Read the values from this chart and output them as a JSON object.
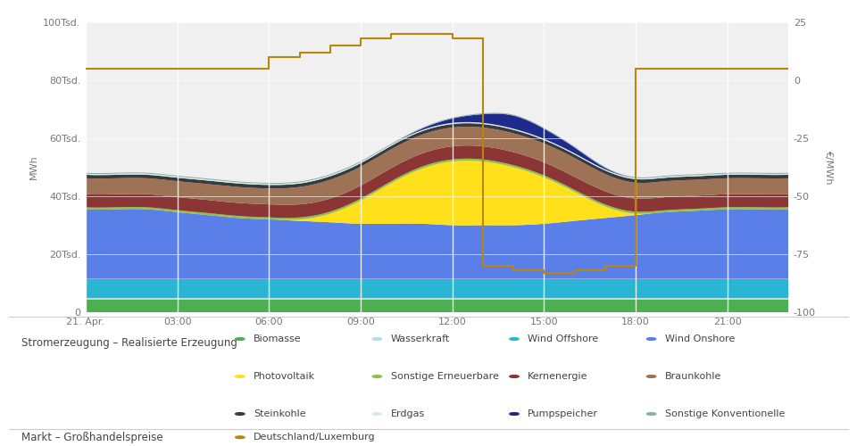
{
  "hours": [
    0,
    1,
    2,
    3,
    4,
    5,
    6,
    7,
    8,
    9,
    10,
    11,
    12,
    13,
    14,
    15,
    16,
    17,
    18,
    19,
    20,
    21,
    22,
    23
  ],
  "biomasse": [
    4200,
    4200,
    4200,
    4200,
    4200,
    4200,
    4200,
    4200,
    4200,
    4200,
    4200,
    4200,
    4200,
    4200,
    4200,
    4200,
    4200,
    4200,
    4200,
    4200,
    4200,
    4200,
    4200,
    4200
  ],
  "wasserkraft": [
    800,
    800,
    800,
    800,
    800,
    800,
    800,
    800,
    800,
    800,
    800,
    800,
    800,
    800,
    800,
    800,
    800,
    800,
    800,
    800,
    800,
    800,
    800,
    800
  ],
  "wind_offshore": [
    6500,
    6500,
    6500,
    6500,
    6500,
    6500,
    6500,
    6500,
    6500,
    6500,
    6500,
    6500,
    6500,
    6500,
    6500,
    6500,
    6500,
    6500,
    6500,
    6500,
    6500,
    6500,
    6500,
    6500
  ],
  "wind_onshore": [
    24000,
    24000,
    24000,
    23000,
    22000,
    21000,
    20500,
    20000,
    19500,
    19000,
    19000,
    19000,
    18500,
    18500,
    18500,
    19000,
    20000,
    21000,
    22000,
    23000,
    23500,
    24000,
    24000,
    24000
  ],
  "photovoltaik": [
    0,
    0,
    0,
    0,
    0,
    0,
    0,
    500,
    3000,
    8000,
    14000,
    19000,
    22000,
    22000,
    20000,
    16000,
    10000,
    4000,
    500,
    0,
    0,
    0,
    0,
    0
  ],
  "sonstige_ern": [
    700,
    700,
    700,
    700,
    700,
    700,
    700,
    700,
    700,
    700,
    700,
    700,
    700,
    700,
    700,
    700,
    700,
    700,
    700,
    700,
    700,
    700,
    700,
    700
  ],
  "kernenergie": [
    4500,
    4500,
    4500,
    4500,
    4500,
    4500,
    4500,
    4500,
    4500,
    4500,
    4500,
    4500,
    4500,
    4500,
    4500,
    4500,
    4500,
    4500,
    4500,
    4500,
    4500,
    4500,
    4500,
    4500
  ],
  "braunkohle": [
    5500,
    5500,
    5500,
    5500,
    5500,
    5500,
    5500,
    6000,
    6500,
    6500,
    6500,
    6500,
    6500,
    6500,
    6500,
    6500,
    6500,
    6000,
    5500,
    5500,
    5500,
    5500,
    5500,
    5500
  ],
  "steinkohle": [
    1200,
    1200,
    1200,
    1200,
    1200,
    1200,
    1200,
    1200,
    1200,
    1200,
    1200,
    1200,
    1200,
    1200,
    1200,
    1200,
    1200,
    1200,
    1200,
    1200,
    1200,
    1200,
    1200,
    1200
  ],
  "erdgas": [
    400,
    400,
    400,
    400,
    400,
    400,
    400,
    400,
    400,
    400,
    400,
    400,
    400,
    400,
    400,
    400,
    400,
    400,
    400,
    400,
    400,
    400,
    400,
    400
  ],
  "pumpspeicher": [
    0,
    0,
    0,
    0,
    0,
    0,
    0,
    0,
    0,
    0,
    0,
    500,
    1500,
    3000,
    4500,
    3500,
    2000,
    500,
    0,
    0,
    0,
    0,
    0,
    0
  ],
  "sonstige_konv": [
    300,
    300,
    300,
    300,
    300,
    300,
    300,
    300,
    300,
    300,
    300,
    300,
    300,
    300,
    300,
    300,
    300,
    300,
    300,
    300,
    300,
    300,
    300,
    300
  ],
  "price": [
    5,
    5,
    5,
    5,
    5,
    5,
    10,
    12,
    15,
    18,
    20,
    20,
    18,
    -80,
    -82,
    -83,
    -82,
    -80,
    5,
    5,
    5,
    5,
    5,
    5
  ],
  "colors": {
    "biomasse": "#4caf50",
    "wasserkraft": "#b8dde8",
    "wind_offshore": "#29b6d4",
    "wind_onshore": "#5b7fe8",
    "photovoltaik": "#ffe01a",
    "sonstige_ern": "#8bc34a",
    "kernenergie": "#8b3535",
    "braunkohle": "#9e7355",
    "steinkohle": "#3a3a3a",
    "erdgas": "#d4ecee",
    "pumpspeicher": "#1e2b8a",
    "sonstige_konv": "#8aacac"
  },
  "price_color": "#b8860b",
  "ylim_left": [
    0,
    100000
  ],
  "ylim_right": [
    -100,
    25
  ],
  "yticks_left": [
    0,
    20000,
    40000,
    60000,
    80000,
    100000
  ],
  "ytick_labels_left": [
    "0",
    "20Tsd.",
    "40Tsd.",
    "60Tsd.",
    "80Tsd.",
    "100Tsd."
  ],
  "yticks_right": [
    -100,
    -75,
    -50,
    -25,
    0,
    25
  ],
  "xlabel_ticks": [
    0,
    3,
    6,
    9,
    12,
    15,
    18,
    21
  ],
  "xlabel_labels": [
    "21. Apr.",
    "03:00",
    "06:00",
    "09:00",
    "12:00",
    "15:00",
    "18:00",
    "21:00"
  ],
  "ylabel_left": "MWh",
  "ylabel_right": "€/MWh",
  "bg_color": "#f0f0f0",
  "legend_items": [
    {
      "label": "Biomasse",
      "color": "#4caf50"
    },
    {
      "label": "Wasserkraft",
      "color": "#b8dde8"
    },
    {
      "label": "Wind Offshore",
      "color": "#29b6d4"
    },
    {
      "label": "Wind Onshore",
      "color": "#5b7fe8"
    },
    {
      "label": "Photovoltaik",
      "color": "#ffe01a"
    },
    {
      "label": "Sonstige Erneuerbare",
      "color": "#8bc34a"
    },
    {
      "label": "Kernenergie",
      "color": "#8b3535"
    },
    {
      "label": "Braunkohle",
      "color": "#9e7355"
    },
    {
      "label": "Steinkohle",
      "color": "#3a3a3a"
    },
    {
      "label": "Erdgas",
      "color": "#d4ecee"
    },
    {
      "label": "Pumpspeicher",
      "color": "#1e2b8a"
    },
    {
      "label": "Sonstige Konventionelle",
      "color": "#8aacac"
    }
  ],
  "market_legend": {
    "label": "Deutschland/Luxemburg",
    "color": "#b8860b"
  },
  "section1_label": "Stromerzeugung – Realisierte Erzeugung",
  "section2_label": "Markt – Großhandelspreise"
}
